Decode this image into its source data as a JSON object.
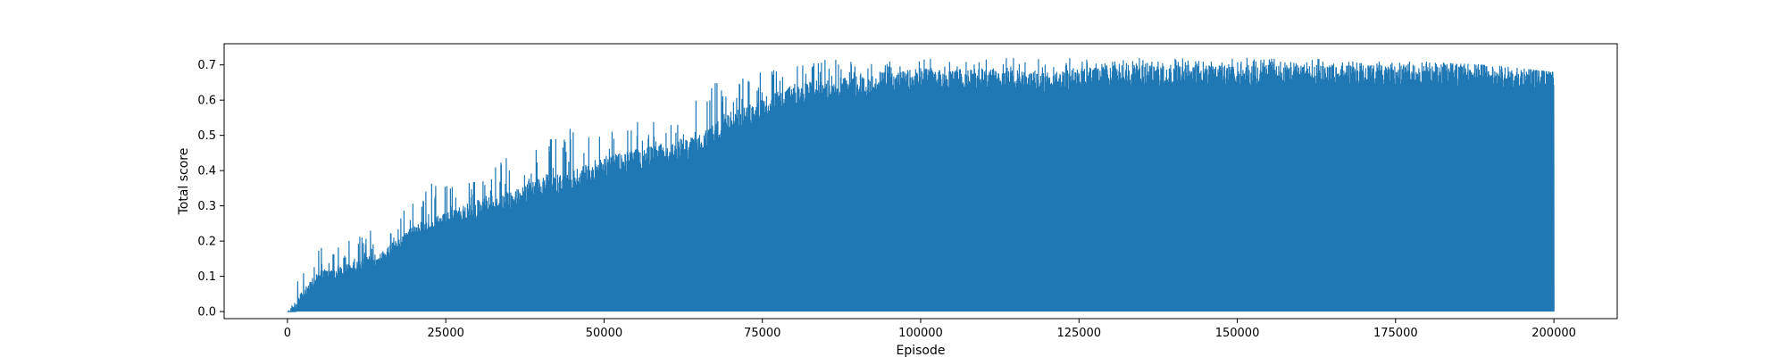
{
  "chart_data": {
    "type": "line",
    "title": "",
    "xlabel": "Episode",
    "ylabel": "Total score",
    "xlim": [
      -10000,
      210000
    ],
    "ylim": [
      -0.02,
      0.76
    ],
    "grid": false,
    "x_ticks": [
      0,
      25000,
      50000,
      75000,
      100000,
      125000,
      150000,
      175000,
      200000
    ],
    "x_tick_labels": [
      "0",
      "25000",
      "50000",
      "75000",
      "100000",
      "125000",
      "150000",
      "175000",
      "200000"
    ],
    "y_ticks": [
      0.0,
      0.1,
      0.2,
      0.3,
      0.4,
      0.5,
      0.6,
      0.7
    ],
    "y_tick_labels": [
      "0.0",
      "0.1",
      "0.2",
      "0.3",
      "0.4",
      "0.5",
      "0.6",
      "0.7"
    ],
    "series": [
      {
        "color": "#1f77b4",
        "x": [
          0,
          2000,
          5000,
          10000,
          15000,
          20000,
          25000,
          30000,
          35000,
          40000,
          45000,
          50000,
          55000,
          60000,
          65000,
          70000,
          75000,
          80000,
          85000,
          90000,
          95000,
          100000,
          110000,
          120000,
          130000,
          140000,
          150000,
          160000,
          170000,
          180000,
          190000,
          200000
        ],
        "upper": [
          0.005,
          0.05,
          0.12,
          0.14,
          0.17,
          0.25,
          0.28,
          0.32,
          0.34,
          0.38,
          0.4,
          0.44,
          0.46,
          0.48,
          0.5,
          0.57,
          0.6,
          0.65,
          0.66,
          0.67,
          0.68,
          0.69,
          0.69,
          0.68,
          0.7,
          0.7,
          0.7,
          0.7,
          0.7,
          0.7,
          0.7,
          0.68
        ],
        "peaks": [
          0.06,
          0.13,
          0.22,
          0.2,
          0.26,
          0.31,
          0.41,
          0.37,
          0.45,
          0.47,
          0.55,
          0.51,
          0.55,
          0.53,
          0.66,
          0.67,
          0.68,
          0.7,
          0.72,
          0.71,
          0.71,
          0.72,
          0.72,
          0.72,
          0.72,
          0.72,
          0.72,
          0.72,
          0.71,
          0.71,
          0.7,
          0.68
        ],
        "lower": [
          0.0,
          0.0,
          0.0,
          0.0,
          0.0,
          0.0,
          0.0,
          0.0,
          0.0,
          0.0,
          0.0,
          0.0,
          0.0,
          0.0,
          0.0,
          0.0,
          0.0,
          0.0,
          0.0,
          0.0,
          0.0,
          0.0,
          0.0,
          0.0,
          0.0,
          0.0,
          0.0,
          0.0,
          0.0,
          0.0,
          0.0,
          0.0
        ]
      }
    ]
  }
}
